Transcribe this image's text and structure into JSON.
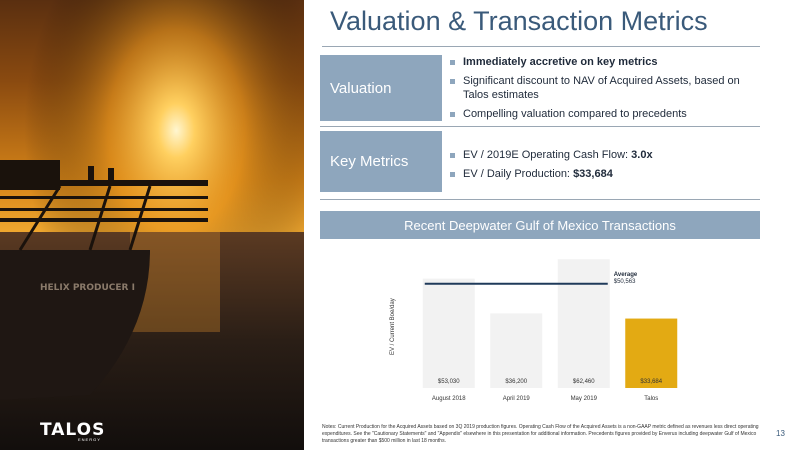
{
  "title": "Valuation & Transaction Metrics",
  "logo": {
    "name": "TALOS",
    "sub": "ENERGY"
  },
  "photo": {
    "ship_text": "HELIX PRODUCER I"
  },
  "sections": [
    {
      "label": "Valuation",
      "bullets": [
        {
          "text": "Immediately accretive on key metrics",
          "bold_all": true
        },
        {
          "text": "Significant discount to NAV of Acquired Assets, based on Talos estimates"
        },
        {
          "text": "Compelling valuation compared to precedents"
        }
      ]
    },
    {
      "label": "Key Metrics",
      "bullets": [
        {
          "prefix": "EV / 2019E Operating Cash Flow: ",
          "value": "3.0x"
        },
        {
          "prefix": "EV / Daily Production: ",
          "value": "$33,684"
        }
      ]
    }
  ],
  "banner": "Recent Deepwater Gulf of Mexico Transactions",
  "chart_data": {
    "type": "bar",
    "categories": [
      "August 2018",
      "April 2019",
      "May 2019",
      "Talos"
    ],
    "values": [
      53030,
      36200,
      62460,
      33684
    ],
    "value_labels": [
      "$53,030",
      "$36,200",
      "$62,460",
      "$33,684"
    ],
    "ylabel": "EV / Current Boe/day",
    "ylim": [
      0,
      65000
    ],
    "average": {
      "label": "Average",
      "value_label": "$50,563",
      "value": 50563
    },
    "colors": {
      "default": "#f2f2f2",
      "highlight": "#e3aa13",
      "average_line": "#1f3a5a"
    }
  },
  "notes": "Notes: Current Production for the Acquired Assets based on 3Q 2019 production figures. Operating Cash Flow of the Acquired Assets is a non-GAAP metric defined as revenues less direct operating expenditures. See the \"Cautionary Statements\" and \"Appendix\" elsewhere in this presentation for additional information. Precedents figures provided by Enverus including deepwater Gulf of Mexico transactions greater than $500 million in last 18 months.",
  "page_number": "13"
}
